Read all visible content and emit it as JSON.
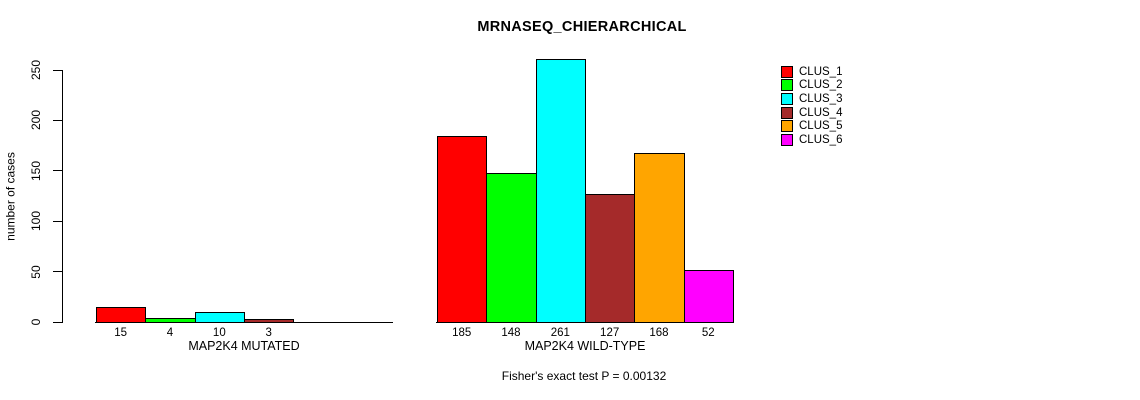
{
  "chart_data": {
    "type": "bar",
    "title": "MRNASEQ_CHIERARCHICAL",
    "ylabel": "number of cases",
    "ylim": [
      0,
      250
    ],
    "yticks": [
      0,
      50,
      100,
      150,
      200,
      250
    ],
    "grid": false,
    "legend_position": "right",
    "categories": [
      "CLUS_1",
      "CLUS_2",
      "CLUS_3",
      "CLUS_4",
      "CLUS_5",
      "CLUS_6"
    ],
    "colors": [
      "#FF0000",
      "#00FF00",
      "#00FFFF",
      "#A52A2A",
      "#FFA500",
      "#FF00FF"
    ],
    "groups": [
      {
        "label": "MAP2K4 MUTATED",
        "values": [
          15,
          4,
          10,
          3,
          0,
          0
        ]
      },
      {
        "label": "MAP2K4 WILD-TYPE",
        "values": [
          185,
          148,
          261,
          127,
          168,
          52
        ]
      }
    ],
    "bar_value_labels_shown": true,
    "annotation": "Fisher's exact test P = 0.00132"
  }
}
